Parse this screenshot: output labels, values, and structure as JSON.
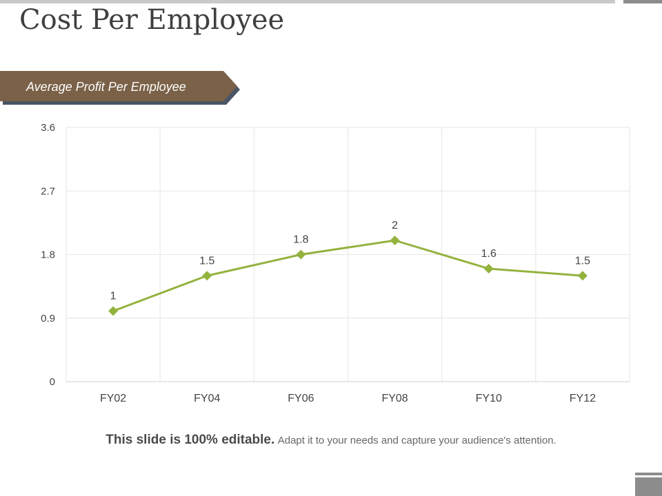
{
  "slide": {
    "title": "Cost Per Employee",
    "banner_label": "Average Profit Per Employee",
    "footer_bold": "This slide is 100% editable.",
    "footer_text": "Adapt it to your needs and capture your audience's attention."
  },
  "colors": {
    "banner": "#7a6148",
    "banner_shadow": "#4a5565",
    "line": "#93b33e",
    "grid": "#e6e6e6",
    "text": "#444444"
  },
  "chart_data": {
    "type": "line",
    "categories": [
      "FY02",
      "FY04",
      "FY06",
      "FY08",
      "FY10",
      "FY12"
    ],
    "series": [
      {
        "values": [
          1,
          1.5,
          1.8,
          2,
          1.6,
          1.5
        ]
      }
    ],
    "data_labels": [
      "1",
      "1.5",
      "1.8",
      "2",
      "1.6",
      "1.5"
    ],
    "y_ticks": [
      "0",
      "0.9",
      "1.8",
      "2.7",
      "3.6"
    ],
    "ylim": [
      0,
      3.6
    ],
    "grid": true,
    "legend": "none",
    "marker": "diamond"
  }
}
